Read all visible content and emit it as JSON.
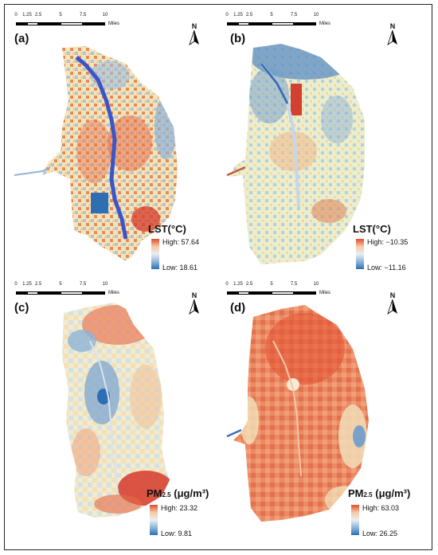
{
  "panels": [
    {
      "label": "(a)",
      "legend": {
        "title": "LST(°C)",
        "high": "High: 57.64",
        "low": "Low: 18.61"
      },
      "scale": {
        "ticks": [
          "0",
          "1.25",
          "2.5",
          "5",
          "7.5",
          "10"
        ],
        "units": "Miles"
      },
      "north": "N"
    },
    {
      "label": "(b)",
      "legend": {
        "title": "LST(°C)",
        "high": "High: −10.35",
        "low": "Low: −11.16"
      },
      "scale": {
        "ticks": [
          "0",
          "1.25",
          "2.5",
          "5",
          "7.5",
          "10"
        ],
        "units": "Miles"
      },
      "north": "N"
    },
    {
      "label": "(c)",
      "legend": {
        "title_main": "PM",
        "title_sub": "2.5",
        "title_unit": " (μg/m³)",
        "high": "High: 23.32",
        "low": "Low: 9.81"
      },
      "scale": {
        "ticks": [
          "0",
          "1.25",
          "2.5",
          "5",
          "7.5",
          "10"
        ],
        "units": "Miles"
      },
      "north": "N"
    },
    {
      "label": "(d)",
      "legend": {
        "title_main": "PM",
        "title_sub": "2.5",
        "title_unit": " (μg/m³)",
        "high": "High: 63.03",
        "low": "Low: 26.25"
      },
      "scale": {
        "ticks": [
          "0",
          "1.25",
          "2.5",
          "5",
          "7.5",
          "10"
        ],
        "units": "Miles"
      },
      "north": "N"
    }
  ],
  "colors": {
    "high": "#e04b2e",
    "mid": "#f1efc8",
    "low": "#2e6fb3",
    "river": "#3b55c8"
  }
}
